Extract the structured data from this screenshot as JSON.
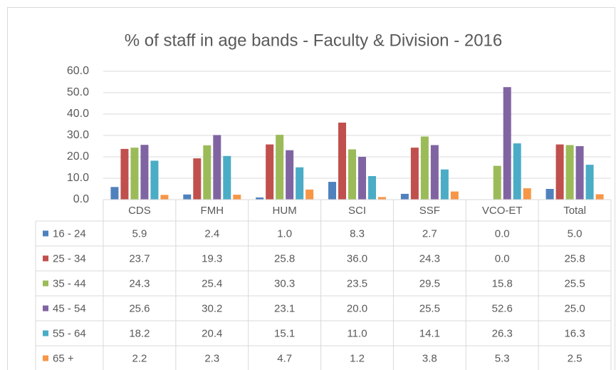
{
  "chart_data": {
    "type": "bar",
    "title": "% of staff in age bands - Faculty & Division - 2016",
    "categories": [
      "CDS",
      "FMH",
      "HUM",
      "SCI",
      "SSF",
      "VCO-ET",
      "Total"
    ],
    "ylim": [
      0,
      60
    ],
    "yticks": [
      {
        "value": 0,
        "label": "0.0"
      },
      {
        "value": 10,
        "label": "10.0"
      },
      {
        "value": 20,
        "label": "20.0"
      },
      {
        "value": 30,
        "label": "30.0"
      },
      {
        "value": 40,
        "label": "40.0"
      },
      {
        "value": 50,
        "label": "50.0"
      },
      {
        "value": 60,
        "label": "60.0"
      }
    ],
    "grid": true,
    "series": [
      {
        "name": "16 - 24",
        "color": "#4f81bd",
        "values": [
          5.9,
          2.4,
          1.0,
          8.3,
          2.7,
          0.0,
          5.0
        ],
        "value_labels": [
          "5.9",
          "2.4",
          "1.0",
          "8.3",
          "2.7",
          "0.0",
          "5.0"
        ]
      },
      {
        "name": "25 - 34",
        "color": "#c0504d",
        "values": [
          23.7,
          19.3,
          25.8,
          36.0,
          24.3,
          0.0,
          25.8
        ],
        "value_labels": [
          "23.7",
          "19.3",
          "25.8",
          "36.0",
          "24.3",
          "0.0",
          "25.8"
        ]
      },
      {
        "name": "35 - 44",
        "color": "#9bbb59",
        "values": [
          24.3,
          25.4,
          30.3,
          23.5,
          29.5,
          15.8,
          25.5
        ],
        "value_labels": [
          "24.3",
          "25.4",
          "30.3",
          "23.5",
          "29.5",
          "15.8",
          "25.5"
        ]
      },
      {
        "name": "45 - 54",
        "color": "#8064a2",
        "values": [
          25.6,
          30.2,
          23.1,
          20.0,
          25.5,
          52.6,
          25.0
        ],
        "value_labels": [
          "25.6",
          "30.2",
          "23.1",
          "20.0",
          "25.5",
          "52.6",
          "25.0"
        ]
      },
      {
        "name": "55 - 64",
        "color": "#4bacc6",
        "values": [
          18.2,
          20.4,
          15.1,
          11.0,
          14.1,
          26.3,
          16.3
        ],
        "value_labels": [
          "18.2",
          "20.4",
          "15.1",
          "11.0",
          "14.1",
          "26.3",
          "16.3"
        ]
      },
      {
        "name": "65 +",
        "color": "#f79646",
        "values": [
          2.2,
          2.3,
          4.7,
          1.2,
          3.8,
          5.3,
          2.5
        ],
        "value_labels": [
          "2.2",
          "2.3",
          "4.7",
          "1.2",
          "3.8",
          "5.3",
          "2.5"
        ]
      }
    ]
  }
}
